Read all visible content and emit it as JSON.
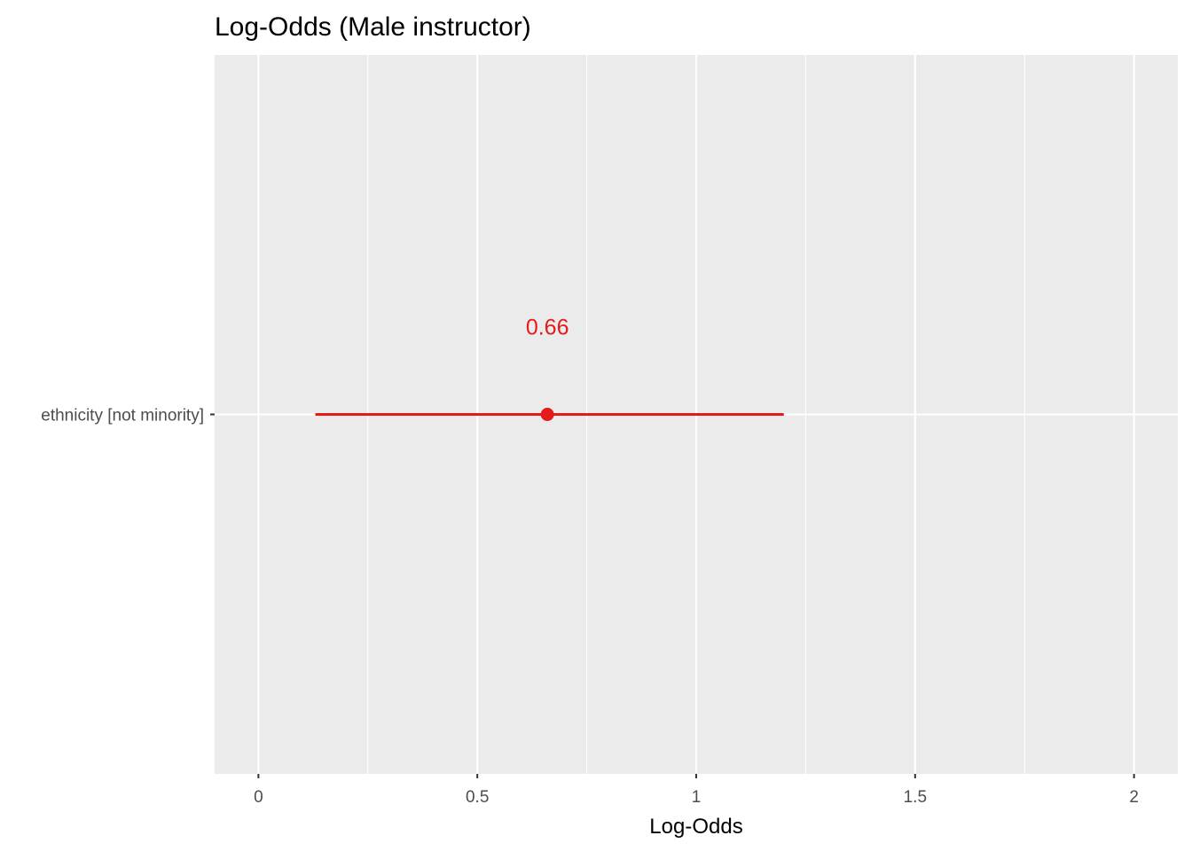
{
  "chart_data": {
    "type": "scatter",
    "title": "Log-Odds (Male instructor)",
    "xlabel": "Log-Odds",
    "ylabel": "",
    "xlim": [
      -0.1,
      2.1
    ],
    "x_ticks": [
      0,
      0.5,
      1,
      1.5,
      2
    ],
    "x_tick_labels": [
      "0",
      "0.5",
      "1",
      "1.5",
      "2"
    ],
    "categories": [
      "ethnicity [not minority]"
    ],
    "series": [
      {
        "estimates": [
          0.66
        ],
        "ci_low": [
          0.13
        ],
        "ci_high": [
          1.2
        ],
        "data_labels": [
          "0.66"
        ],
        "color": "#e41a1c"
      }
    ],
    "grid": true,
    "legend": "none",
    "panel_background": "#ebebeb",
    "grid_color": "#ffffff"
  }
}
